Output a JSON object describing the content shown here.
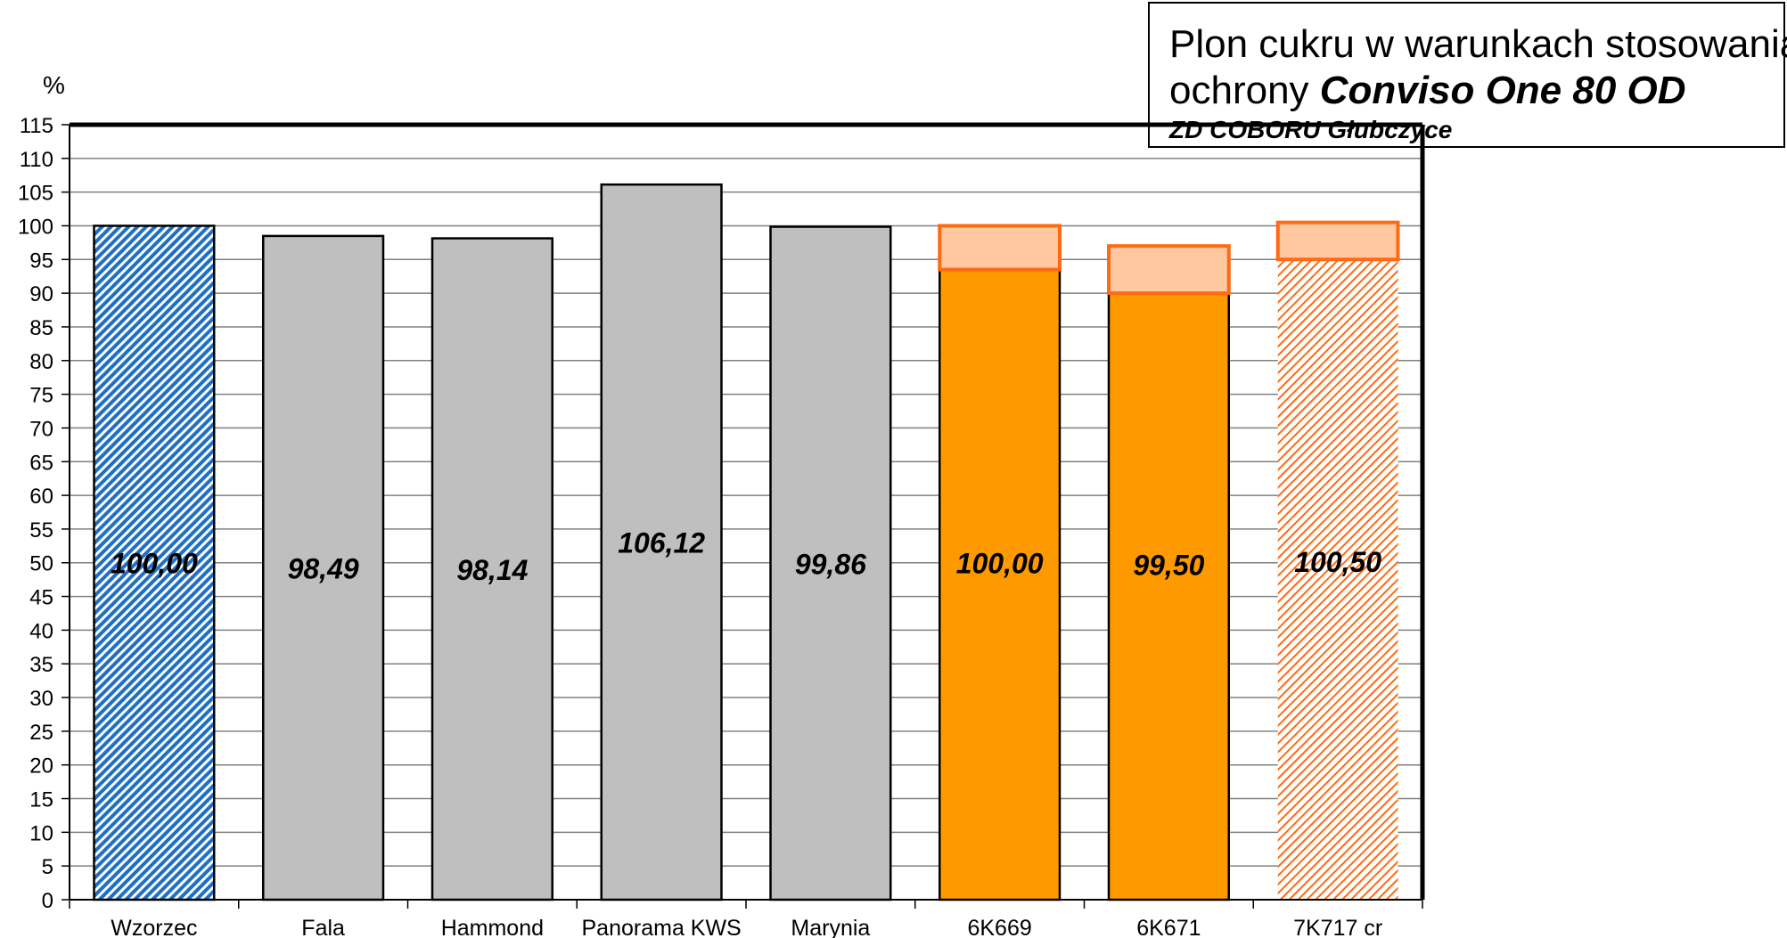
{
  "title": {
    "line1": "Plon cukru w warunkach stosowania",
    "line2_prefix": "ochrony ",
    "line2_emph": "Conviso One 80 OD",
    "subtitle": "ZD COBORU Głubczyce"
  },
  "chart_data": {
    "type": "bar",
    "ylabel": "%",
    "ylim": [
      0,
      115
    ],
    "ytick_step": 5,
    "grid": true,
    "categories": [
      "Wzorzec",
      "Fala",
      "Hammond",
      "Panorama KWS",
      "Marynia",
      "6K669",
      "6K671",
      "7K717 cr"
    ],
    "values": [
      100.0,
      98.49,
      98.14,
      106.12,
      99.86,
      100.0,
      99.5,
      100.5
    ],
    "value_labels": [
      "100,00",
      "98,49",
      "98,14",
      "106,12",
      "99,86",
      "100,00",
      "99,50",
      "100,50"
    ],
    "bar_styles": [
      "hatch-blue",
      "gray",
      "gray",
      "gray",
      "gray",
      "orange-range",
      "orange-range",
      "hatch-orange-range"
    ],
    "range_bands": [
      null,
      null,
      null,
      null,
      null,
      [
        93.5,
        100.0
      ],
      [
        90.0,
        97.0
      ],
      [
        95.0,
        100.5
      ]
    ],
    "colors": {
      "gray": "#bfbfbf",
      "orange": "#ff9900",
      "orange_light": "#ffc8a0",
      "orange_edge": "#ff6a13",
      "blue_hatch": "#1f6fc5",
      "hatch_orange": "#ff6a13",
      "grid": "#808080",
      "axis": "#000000"
    }
  }
}
